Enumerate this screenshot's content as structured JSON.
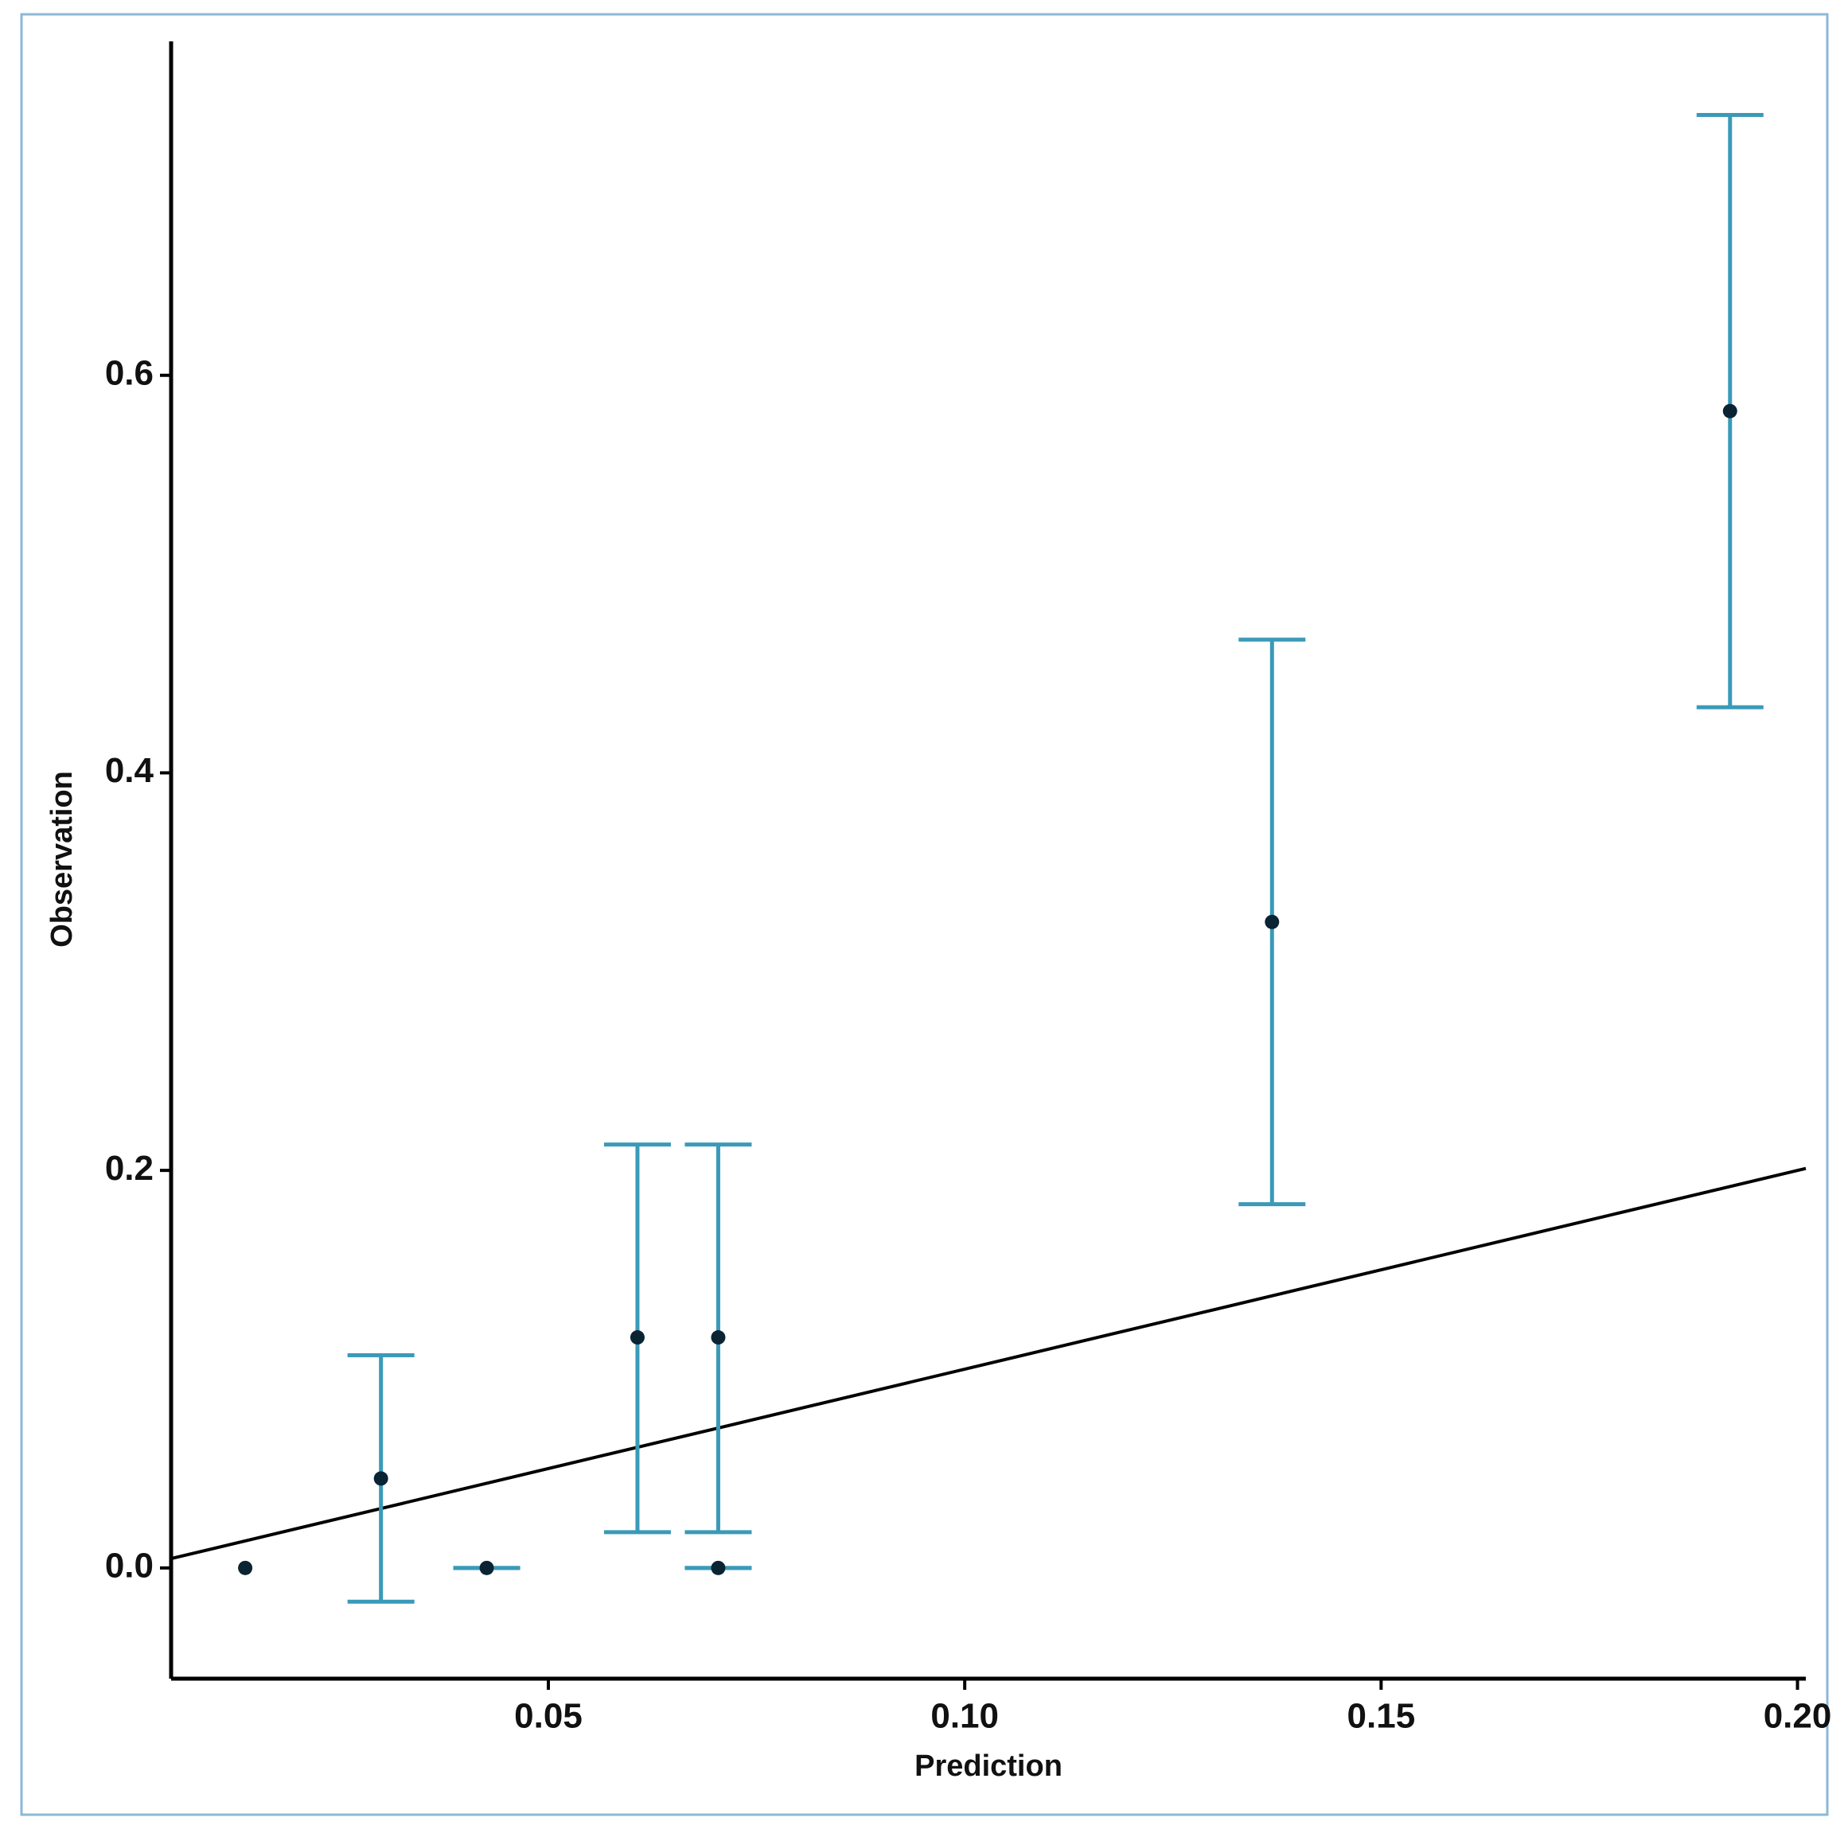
{
  "chart_data": {
    "type": "scatter",
    "x_label": "Prediction",
    "y_label": "Observation",
    "x": [
      0.0136,
      0.0299,
      0.0426,
      0.0607,
      0.0704,
      0.0704,
      0.1369,
      0.1919
    ],
    "values": [
      0,
      0.045,
      0,
      0.116,
      0.116,
      0,
      0.325,
      0.582
    ],
    "lower": [
      0,
      -0.017,
      0,
      0.018,
      0.018,
      0,
      0.183,
      0.433
    ],
    "upper": [
      0,
      0.107,
      0,
      0.213,
      0.213,
      0,
      0.467,
      0.731
    ],
    "color": "#3a9ab8",
    "point_color": "#0a2433",
    "reference_line": {
      "x": [
        0.0047,
        0.201
      ],
      "y": [
        0.0047,
        0.201
      ],
      "color": "#000000"
    },
    "xlim": [
      0.0047,
      0.201
    ],
    "ylim": [
      -0.0557,
      0.768
    ],
    "xticks": [
      0.05,
      {
        "value": 0.1,
        "label": "0.10"
      },
      0.15,
      {
        "value": 0.2,
        "label": "0.20"
      }
    ],
    "yticks": [
      {
        "value": 0,
        "label": "0.0"
      },
      0.2,
      0.4,
      0.6
    ],
    "grid": false
  }
}
